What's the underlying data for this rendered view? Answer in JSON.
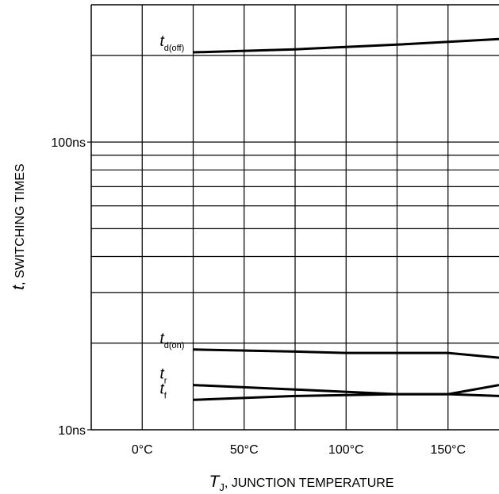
{
  "chart_data": {
    "type": "line",
    "xlabel_symbol": "T",
    "xlabel_subscript": "J",
    "xlabel_text": ", JUNCTION TEMPERATURE",
    "ylabel_symbol": "t",
    "ylabel_text": ", SWITCHING TIMES",
    "xlim": [
      -25,
      175
    ],
    "ylim": [
      10,
      300
    ],
    "y_scale": "log",
    "grid": true,
    "x_ticks": [
      {
        "value": 0,
        "label": "0°C"
      },
      {
        "value": 50,
        "label": "50°C"
      },
      {
        "value": 100,
        "label": "100°C"
      },
      {
        "value": 150,
        "label": "150°C"
      }
    ],
    "y_ticks": [
      {
        "value": 10,
        "label": "10ns"
      },
      {
        "value": 100,
        "label": "100ns"
      }
    ],
    "series": [
      {
        "label_symbol": "t",
        "label_subscript": "d(off)",
        "x": [
          25,
          75,
          125,
          175
        ],
        "y": [
          205,
          210,
          218,
          228
        ],
        "label_at": {
          "x": 25,
          "y": 205
        }
      },
      {
        "label_symbol": "t",
        "label_subscript": "d(on)",
        "x": [
          25,
          75,
          100,
          150,
          175
        ],
        "y": [
          19,
          18.7,
          18.5,
          18.5,
          17.8
        ],
        "label_at": {
          "x": 25,
          "y": 19
        }
      },
      {
        "label_symbol": "t",
        "label_subscript": "r",
        "x": [
          25,
          75,
          125,
          150,
          175
        ],
        "y": [
          14.3,
          13.8,
          13.3,
          13.3,
          14.3
        ],
        "label_at": {
          "x": 25,
          "y": 14.3
        }
      },
      {
        "label_symbol": "t",
        "label_subscript": "f",
        "x": [
          25,
          75,
          125,
          150,
          175
        ],
        "y": [
          12.7,
          13.1,
          13.3,
          13.3,
          13.1
        ],
        "label_at": {
          "x": 25,
          "y": 12.7
        }
      }
    ]
  }
}
